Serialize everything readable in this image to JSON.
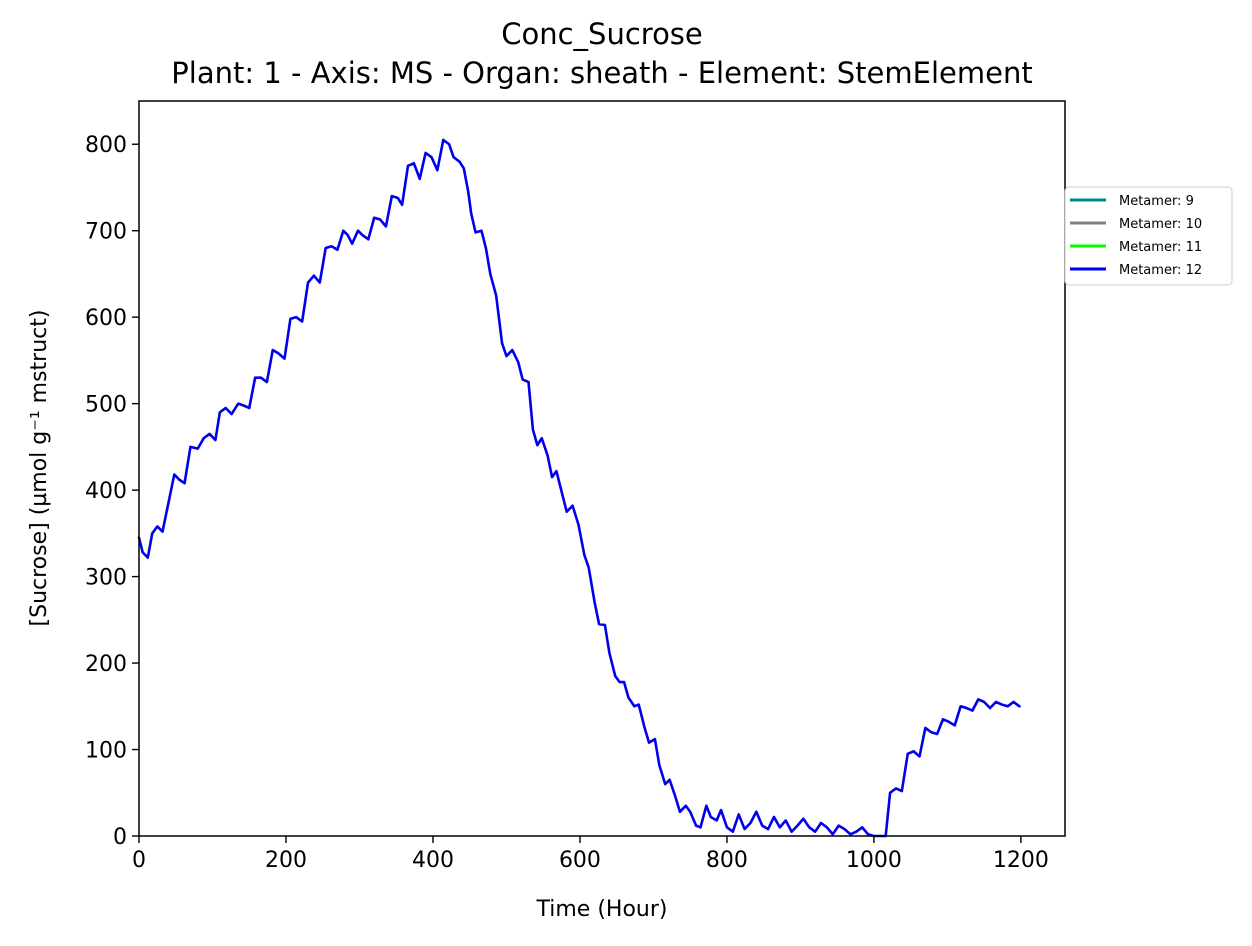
{
  "chart_data": {
    "type": "line",
    "title": "Conc_Sucrose",
    "subtitle": "Plant: 1 - Axis: MS - Organ: sheath - Element: StemElement",
    "xlabel": "Time (Hour)",
    "ylabel": "[Sucrose] (µmol g⁻¹ mstruct)",
    "xlim": [
      0,
      1260
    ],
    "ylim": [
      0,
      850
    ],
    "xticks": [
      0,
      200,
      400,
      600,
      800,
      1000,
      1200
    ],
    "yticks": [
      0,
      100,
      200,
      300,
      400,
      500,
      600,
      700,
      800
    ],
    "grid": false,
    "legend_position": "outside-right",
    "series": [
      {
        "name": "Metamer: 9",
        "color": "#008b8b",
        "x": [
          0,
          5,
          12,
          18,
          25,
          32,
          40,
          48,
          55,
          62,
          70,
          80,
          88,
          96,
          104,
          110,
          118,
          126,
          135,
          142,
          150,
          158,
          166,
          174,
          182,
          190,
          198,
          206,
          214,
          222,
          230,
          238,
          246,
          254,
          262,
          270,
          278,
          284,
          290,
          298,
          304,
          312,
          320,
          328,
          336,
          344,
          352,
          358,
          366,
          374,
          382,
          390,
          398,
          406,
          414,
          422,
          428,
          436,
          442,
          448,
          452,
          458,
          466,
          472,
          478,
          486,
          494,
          500,
          508,
          516,
          522,
          530,
          536,
          542,
          548,
          556,
          562,
          568,
          576,
          582,
          590,
          598,
          606,
          612,
          620,
          626,
          634,
          640,
          648,
          654,
          660,
          666,
          674,
          680,
          688,
          694,
          702,
          708,
          716,
          722,
          730,
          736,
          744,
          750,
          758,
          764,
          772,
          778,
          786,
          792,
          800,
          808,
          816,
          824,
          832,
          840,
          848,
          856,
          864,
          872,
          880,
          888,
          896,
          904,
          912,
          920,
          928,
          936,
          944,
          952,
          960,
          968,
          976,
          984,
          992,
          1000,
          1008,
          1016,
          1022,
          1030,
          1038,
          1046,
          1054,
          1062,
          1070,
          1078,
          1086,
          1094,
          1102,
          1110,
          1118,
          1126,
          1134,
          1142,
          1150,
          1158,
          1166,
          1174,
          1182,
          1190,
          1198
        ],
        "y": [
          345,
          328,
          322,
          350,
          358,
          352,
          385,
          418,
          412,
          408,
          450,
          448,
          460,
          465,
          458,
          490,
          495,
          488,
          500,
          498,
          495,
          530,
          530,
          525,
          562,
          558,
          552,
          598,
          600,
          595,
          640,
          648,
          640,
          680,
          682,
          678,
          700,
          695,
          685,
          700,
          695,
          690,
          715,
          713,
          705,
          740,
          738,
          730,
          775,
          778,
          760,
          790,
          785,
          770,
          805,
          800,
          785,
          780,
          772,
          745,
          720,
          698,
          700,
          680,
          650,
          625,
          570,
          555,
          562,
          548,
          528,
          525,
          470,
          452,
          460,
          440,
          415,
          422,
          395,
          375,
          382,
          360,
          325,
          310,
          270,
          245,
          244,
          212,
          185,
          178,
          178,
          160,
          150,
          152,
          125,
          108,
          112,
          82,
          60,
          65,
          45,
          28,
          35,
          28,
          12,
          10,
          35,
          22,
          18,
          30,
          10,
          5,
          25,
          8,
          15,
          28,
          12,
          8,
          22,
          10,
          18,
          5,
          12,
          20,
          10,
          5,
          15,
          10,
          2,
          12,
          8,
          2,
          5,
          10,
          2,
          0,
          0,
          0,
          50,
          55,
          52,
          95,
          98,
          92,
          125,
          120,
          118,
          135,
          132,
          128,
          150,
          148,
          145,
          158,
          155,
          148,
          155,
          152,
          150,
          155,
          150
        ],
        "visible": false
      },
      {
        "name": "Metamer: 10",
        "color": "#808080",
        "visible": false
      },
      {
        "name": "Metamer: 11",
        "color": "#00ff00",
        "visible": false
      },
      {
        "name": "Metamer: 12",
        "color": "#0000ee",
        "x": [
          0,
          5,
          12,
          18,
          25,
          32,
          40,
          48,
          55,
          62,
          70,
          80,
          88,
          96,
          104,
          110,
          118,
          126,
          135,
          142,
          150,
          158,
          166,
          174,
          182,
          190,
          198,
          206,
          214,
          222,
          230,
          238,
          246,
          254,
          262,
          270,
          278,
          284,
          290,
          298,
          304,
          312,
          320,
          328,
          336,
          344,
          352,
          358,
          366,
          374,
          382,
          390,
          398,
          406,
          414,
          422,
          428,
          436,
          442,
          448,
          452,
          458,
          466,
          472,
          478,
          486,
          494,
          500,
          508,
          516,
          522,
          530,
          536,
          542,
          548,
          556,
          562,
          568,
          576,
          582,
          590,
          598,
          606,
          612,
          620,
          626,
          634,
          640,
          648,
          654,
          660,
          666,
          674,
          680,
          688,
          694,
          702,
          708,
          716,
          722,
          730,
          736,
          744,
          750,
          758,
          764,
          772,
          778,
          786,
          792,
          800,
          808,
          816,
          824,
          832,
          840,
          848,
          856,
          864,
          872,
          880,
          888,
          896,
          904,
          912,
          920,
          928,
          936,
          944,
          952,
          960,
          968,
          976,
          984,
          992,
          1000,
          1008,
          1016,
          1022,
          1030,
          1038,
          1046,
          1054,
          1062,
          1070,
          1078,
          1086,
          1094,
          1102,
          1110,
          1118,
          1126,
          1134,
          1142,
          1150,
          1158,
          1166,
          1174,
          1182,
          1190,
          1198
        ],
        "y": [
          345,
          328,
          322,
          350,
          358,
          352,
          385,
          418,
          412,
          408,
          450,
          448,
          460,
          465,
          458,
          490,
          495,
          488,
          500,
          498,
          495,
          530,
          530,
          525,
          562,
          558,
          552,
          598,
          600,
          595,
          640,
          648,
          640,
          680,
          682,
          678,
          700,
          695,
          685,
          700,
          695,
          690,
          715,
          713,
          705,
          740,
          738,
          730,
          775,
          778,
          760,
          790,
          785,
          770,
          805,
          800,
          785,
          780,
          772,
          745,
          720,
          698,
          700,
          680,
          650,
          625,
          570,
          555,
          562,
          548,
          528,
          525,
          470,
          452,
          460,
          440,
          415,
          422,
          395,
          375,
          382,
          360,
          325,
          310,
          270,
          245,
          244,
          212,
          185,
          178,
          178,
          160,
          150,
          152,
          125,
          108,
          112,
          82,
          60,
          65,
          45,
          28,
          35,
          28,
          12,
          10,
          35,
          22,
          18,
          30,
          10,
          5,
          25,
          8,
          15,
          28,
          12,
          8,
          22,
          10,
          18,
          5,
          12,
          20,
          10,
          5,
          15,
          10,
          2,
          12,
          8,
          2,
          5,
          10,
          2,
          0,
          0,
          0,
          50,
          55,
          52,
          95,
          98,
          92,
          125,
          120,
          118,
          135,
          132,
          128,
          150,
          148,
          145,
          158,
          155,
          148,
          155,
          152,
          150,
          155,
          150
        ],
        "visible": true
      }
    ]
  }
}
